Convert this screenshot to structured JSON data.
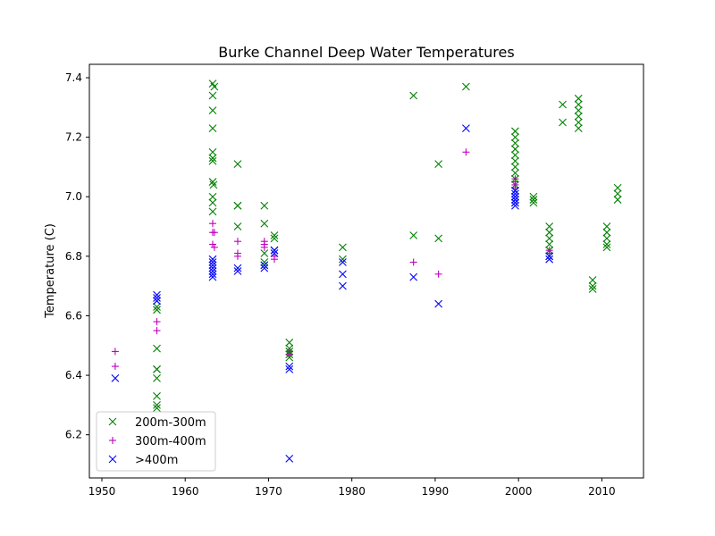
{
  "chart_data": {
    "type": "scatter",
    "title": "Burke Channel Deep Water Temperatures",
    "xlabel": "",
    "ylabel": "Temperature (C)",
    "xlim": [
      1948.5,
      2015
    ],
    "ylim": [
      6.055,
      7.445
    ],
    "xticks": [
      1950,
      1960,
      1970,
      1980,
      1990,
      2000,
      2010
    ],
    "yticks": [
      6.2,
      6.4,
      6.6,
      6.8,
      7.0,
      7.2,
      7.4
    ],
    "xtick_labels": [
      "1950",
      "1960",
      "1970",
      "1980",
      "1990",
      "2000",
      "2010"
    ],
    "ytick_labels": [
      "6.2",
      "6.4",
      "6.6",
      "6.8",
      "7.0",
      "7.2",
      "7.4"
    ],
    "grid": false,
    "legend_position": "lower-left",
    "series": [
      {
        "name": "200m-300m",
        "marker": "x",
        "color": "#008000",
        "points": [
          [
            1956.6,
            6.63
          ],
          [
            1956.6,
            6.62
          ],
          [
            1956.6,
            6.49
          ],
          [
            1956.6,
            6.42
          ],
          [
            1956.6,
            6.42
          ],
          [
            1956.6,
            6.39
          ],
          [
            1956.6,
            6.33
          ],
          [
            1956.6,
            6.3
          ],
          [
            1956.6,
            6.29
          ],
          [
            1963.3,
            7.38
          ],
          [
            1963.5,
            7.37
          ],
          [
            1963.3,
            7.34
          ],
          [
            1963.3,
            7.29
          ],
          [
            1963.3,
            7.23
          ],
          [
            1963.3,
            7.15
          ],
          [
            1963.3,
            7.13
          ],
          [
            1963.3,
            7.12
          ],
          [
            1963.3,
            7.05
          ],
          [
            1963.4,
            7.04
          ],
          [
            1963.3,
            7.0
          ],
          [
            1963.3,
            6.98
          ],
          [
            1963.3,
            6.95
          ],
          [
            1966.3,
            7.11
          ],
          [
            1966.3,
            6.97
          ],
          [
            1966.3,
            6.97
          ],
          [
            1966.3,
            6.9
          ],
          [
            1969.5,
            6.97
          ],
          [
            1969.5,
            6.91
          ],
          [
            1969.5,
            6.81
          ],
          [
            1969.5,
            6.78
          ],
          [
            1969.5,
            6.77
          ],
          [
            1970.7,
            6.87
          ],
          [
            1970.7,
            6.86
          ],
          [
            1970.7,
            6.82
          ],
          [
            1972.5,
            6.51
          ],
          [
            1972.5,
            6.49
          ],
          [
            1972.5,
            6.48
          ],
          [
            1972.5,
            6.47
          ],
          [
            1972.5,
            6.46
          ],
          [
            1978.9,
            6.83
          ],
          [
            1978.9,
            6.79
          ],
          [
            1987.4,
            7.34
          ],
          [
            1987.4,
            6.87
          ],
          [
            1990.4,
            7.11
          ],
          [
            1990.4,
            6.86
          ],
          [
            1993.7,
            7.37
          ],
          [
            1999.6,
            7.22
          ],
          [
            1999.6,
            7.2
          ],
          [
            1999.6,
            7.18
          ],
          [
            1999.6,
            7.16
          ],
          [
            1999.6,
            7.14
          ],
          [
            1999.6,
            7.12
          ],
          [
            1999.6,
            7.1
          ],
          [
            1999.6,
            7.08
          ],
          [
            1999.6,
            7.06
          ],
          [
            1999.6,
            7.04
          ],
          [
            1999.6,
            7.02
          ],
          [
            1999.6,
            7.0
          ],
          [
            1999.6,
            6.98
          ],
          [
            2001.8,
            7.0
          ],
          [
            2001.8,
            6.99
          ],
          [
            2001.8,
            6.98
          ],
          [
            2003.7,
            6.9
          ],
          [
            2003.7,
            6.88
          ],
          [
            2003.7,
            6.86
          ],
          [
            2003.7,
            6.84
          ],
          [
            2003.7,
            6.82
          ],
          [
            2003.7,
            6.8
          ],
          [
            2005.3,
            7.31
          ],
          [
            2005.3,
            7.25
          ],
          [
            2007.2,
            7.33
          ],
          [
            2007.2,
            7.31
          ],
          [
            2007.2,
            7.29
          ],
          [
            2007.2,
            7.27
          ],
          [
            2007.2,
            7.25
          ],
          [
            2007.2,
            7.23
          ],
          [
            2008.9,
            6.72
          ],
          [
            2008.9,
            6.7
          ],
          [
            2008.9,
            6.69
          ],
          [
            2010.6,
            6.9
          ],
          [
            2010.6,
            6.88
          ],
          [
            2010.6,
            6.86
          ],
          [
            2010.6,
            6.84
          ],
          [
            2010.6,
            6.83
          ],
          [
            2011.9,
            7.03
          ],
          [
            2011.9,
            7.01
          ],
          [
            2011.9,
            6.99
          ]
        ]
      },
      {
        "name": "300m-400m",
        "marker": "+",
        "color": "#bf00bf",
        "points": [
          [
            1951.6,
            6.48
          ],
          [
            1951.6,
            6.43
          ],
          [
            1956.6,
            6.58
          ],
          [
            1956.6,
            6.55
          ],
          [
            1963.3,
            6.91
          ],
          [
            1963.3,
            6.88
          ],
          [
            1963.5,
            6.88
          ],
          [
            1963.3,
            6.84
          ],
          [
            1963.5,
            6.83
          ],
          [
            1966.3,
            6.85
          ],
          [
            1966.3,
            6.81
          ],
          [
            1966.3,
            6.8
          ],
          [
            1969.5,
            6.85
          ],
          [
            1969.5,
            6.84
          ],
          [
            1969.5,
            6.83
          ],
          [
            1970.7,
            6.8
          ],
          [
            1970.7,
            6.79
          ],
          [
            1972.5,
            6.48
          ],
          [
            1972.5,
            6.47
          ],
          [
            1987.4,
            6.78
          ],
          [
            1990.4,
            6.74
          ],
          [
            1993.7,
            7.15
          ],
          [
            1999.6,
            7.06
          ],
          [
            1999.6,
            7.05
          ],
          [
            1999.6,
            7.04
          ],
          [
            1999.6,
            7.03
          ],
          [
            2003.7,
            6.82
          ],
          [
            2003.7,
            6.81
          ]
        ]
      },
      {
        "name": ">400m",
        "marker": "x",
        "color": "#0000ff",
        "points": [
          [
            1951.6,
            6.39
          ],
          [
            1956.6,
            6.67
          ],
          [
            1956.6,
            6.66
          ],
          [
            1956.6,
            6.65
          ],
          [
            1963.3,
            6.79
          ],
          [
            1963.3,
            6.78
          ],
          [
            1963.3,
            6.77
          ],
          [
            1963.3,
            6.76
          ],
          [
            1963.3,
            6.75
          ],
          [
            1963.3,
            6.74
          ],
          [
            1963.3,
            6.73
          ],
          [
            1966.3,
            6.76
          ],
          [
            1966.3,
            6.75
          ],
          [
            1969.5,
            6.77
          ],
          [
            1969.5,
            6.76
          ],
          [
            1970.7,
            6.82
          ],
          [
            1970.7,
            6.81
          ],
          [
            1972.5,
            6.43
          ],
          [
            1972.5,
            6.42
          ],
          [
            1972.5,
            6.12
          ],
          [
            1978.9,
            6.78
          ],
          [
            1978.9,
            6.74
          ],
          [
            1978.9,
            6.7
          ],
          [
            1987.4,
            6.73
          ],
          [
            1990.4,
            6.64
          ],
          [
            1993.7,
            7.23
          ],
          [
            1999.6,
            7.02
          ],
          [
            1999.6,
            7.01
          ],
          [
            1999.6,
            7.0
          ],
          [
            1999.6,
            6.99
          ],
          [
            1999.6,
            6.98
          ],
          [
            1999.6,
            6.97
          ],
          [
            2003.7,
            6.8
          ],
          [
            2003.7,
            6.79
          ]
        ]
      }
    ]
  }
}
